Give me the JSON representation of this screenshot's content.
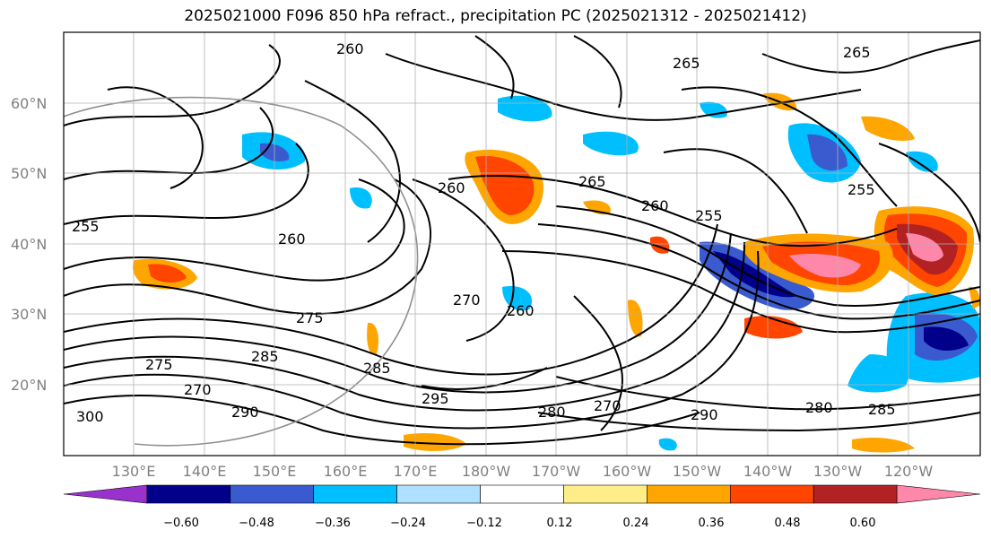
{
  "title": "2025021000 F096 850 hPa refract., precipitation PC (2025021312 - 2025021412)",
  "lat_labels": [
    "60°N",
    "50°N",
    "40°N",
    "30°N",
    "20°N"
  ],
  "lon_labels": [
    "130°E",
    "140°E",
    "150°E",
    "160°E",
    "170°E",
    "180°W",
    "170°W",
    "160°W",
    "150°W",
    "140°W",
    "130°W",
    "120°W"
  ],
  "contour_labels": [
    "260",
    "265",
    "265",
    "260",
    "255",
    "260",
    "265",
    "260",
    "255",
    "270",
    "260",
    "275",
    "285",
    "275",
    "270",
    "290",
    "285",
    "295",
    "280",
    "270",
    "290",
    "280",
    "285",
    "300",
    "255"
  ],
  "colorbar": {
    "ticks": [
      "−0.60",
      "−0.48",
      "−0.36",
      "−0.24",
      "−0.12",
      "0.12",
      "0.24",
      "0.36",
      "0.48",
      "0.60"
    ],
    "colors": [
      "#9932CC",
      "#00008B",
      "#3A5BCF",
      "#00BFFF",
      "#B0E0FF",
      "#FFFFFF",
      "#FFEE88",
      "#FFA500",
      "#FF4500",
      "#B22222",
      "#FF88AA"
    ]
  }
}
